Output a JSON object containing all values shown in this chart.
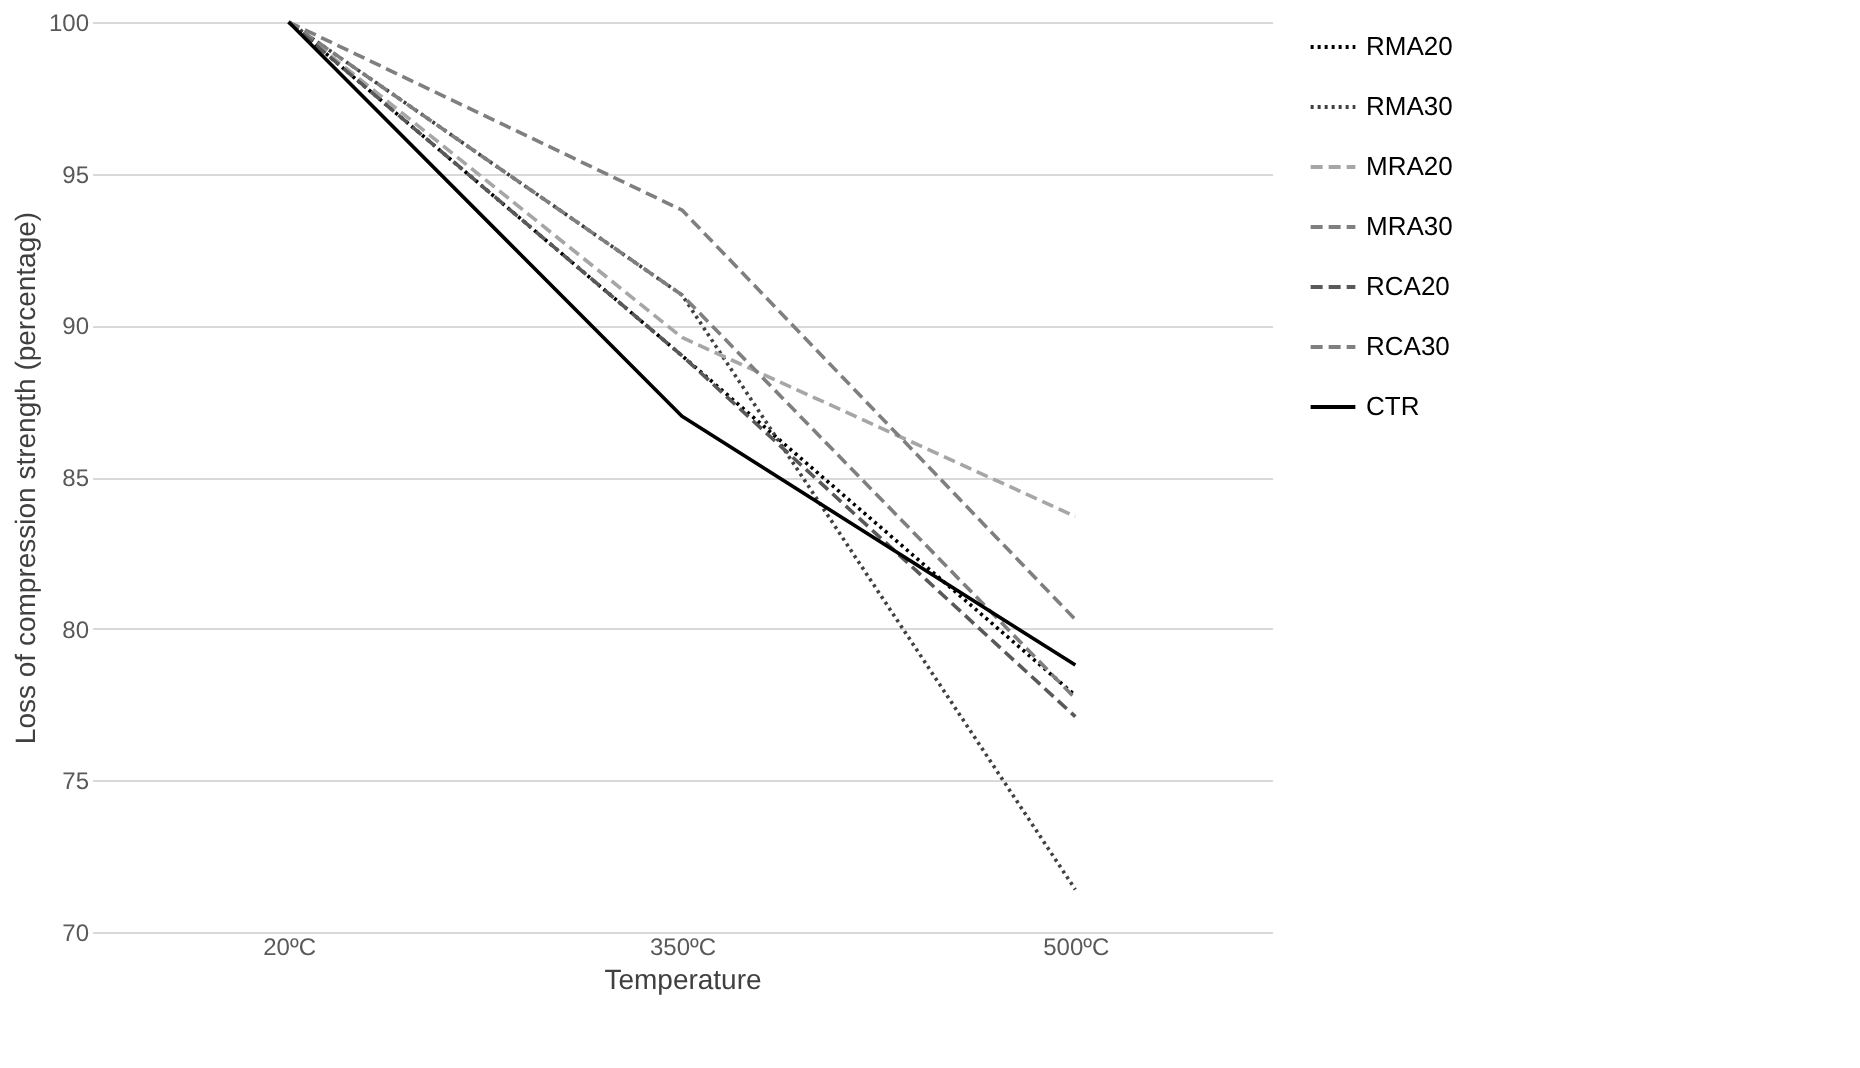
{
  "chart_data": {
    "type": "line",
    "xlabel": "Temperature",
    "ylabel": "Loss of compression strength (percentage)",
    "categories": [
      "20ºC",
      "350ºC",
      "500ºC"
    ],
    "series": [
      {
        "name": "RMA20",
        "color": "#000000",
        "line_style": "dotted",
        "values": [
          100,
          89,
          77.8
        ]
      },
      {
        "name": "RMA30",
        "color": "#404040",
        "line_style": "dotted",
        "values": [
          100,
          91,
          71.4
        ]
      },
      {
        "name": "MRA20",
        "color": "#a6a6a6",
        "line_style": "dashed",
        "values": [
          100,
          89.6,
          83.7
        ]
      },
      {
        "name": "MRA30",
        "color": "#7f7f7f",
        "line_style": "dashed",
        "values": [
          100,
          91,
          77.7
        ]
      },
      {
        "name": "RCA20",
        "color": "#595959",
        "line_style": "dashed",
        "values": [
          100,
          89,
          77.1
        ]
      },
      {
        "name": "RCA30",
        "color": "#7f7f7f",
        "line_style": "dashed",
        "values": [
          100,
          93.8,
          80.3
        ]
      },
      {
        "name": "CTR",
        "color": "#000000",
        "line_style": "solid",
        "values": [
          100,
          87,
          78.8
        ]
      }
    ],
    "ylim": [
      70,
      100
    ],
    "yticks": [
      70,
      75,
      80,
      85,
      90,
      95,
      100
    ],
    "grid": "y",
    "legend": "right",
    "marker": "none"
  }
}
